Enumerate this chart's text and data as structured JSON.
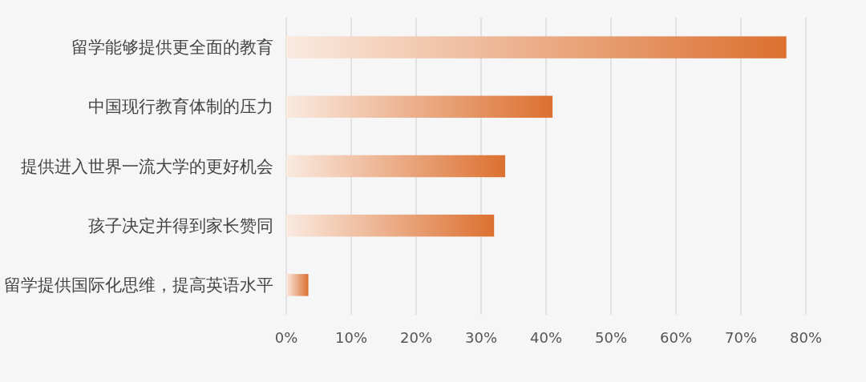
{
  "chart_data": {
    "type": "bar",
    "orientation": "horizontal",
    "categories": [
      "留学能够提供更全面的教育",
      "中国现行教育体制的压力",
      "提供进入世界一流大学的更好机会",
      "孩子决定并得到家长赞同",
      "留学提供国际化思维，提高英语水平"
    ],
    "values": [
      77,
      41,
      33.7,
      32,
      3.4
    ],
    "color": "#dc7030",
    "xlim": [
      0,
      80
    ],
    "xticks": [
      {
        "value": 0,
        "label": "0%"
      },
      {
        "value": 10,
        "label": "10%"
      },
      {
        "value": 20,
        "label": "20%"
      },
      {
        "value": 30,
        "label": "30%"
      },
      {
        "value": 40,
        "label": "40%"
      },
      {
        "value": 50,
        "label": "50%"
      },
      {
        "value": 60,
        "label": "60%"
      },
      {
        "value": 70,
        "label": "70%"
      },
      {
        "value": 80,
        "label": "80%"
      }
    ],
    "grid": "x"
  }
}
